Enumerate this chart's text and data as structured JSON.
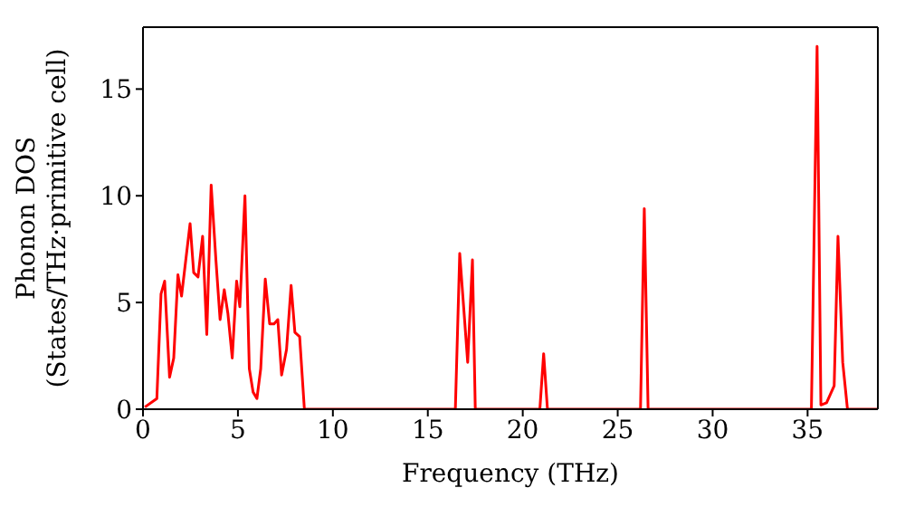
{
  "chart_data": {
    "type": "line",
    "xlabel": "Frequency (THz)",
    "ylabel": "Phonon DOS\n(States/THz·primitive cell)",
    "xlim": [
      0,
      38.7
    ],
    "ylim": [
      0,
      17.9
    ],
    "xticks": [
      0,
      5,
      10,
      15,
      20,
      25,
      30,
      35
    ],
    "yticks": [
      0,
      5,
      10,
      15
    ],
    "marker": "none",
    "line_style": "solid",
    "series": [
      {
        "color": "#ff0000",
        "x": [
          0.1,
          0.73,
          0.95,
          1.14,
          1.4,
          1.62,
          1.84,
          2.03,
          2.48,
          2.67,
          2.9,
          3.14,
          3.36,
          3.59,
          3.84,
          4.06,
          4.28,
          4.47,
          4.7,
          4.93,
          5.1,
          5.37,
          5.6,
          5.8,
          6.0,
          6.2,
          6.44,
          6.67,
          6.9,
          7.1,
          7.3,
          7.56,
          7.8,
          8.0,
          8.25,
          8.5,
          16.45,
          16.68,
          17.1,
          17.35,
          17.5,
          20.9,
          21.1,
          21.3,
          26.2,
          26.4,
          26.6,
          35.2,
          35.5,
          35.7,
          36.0,
          36.4,
          36.6,
          36.85,
          37.1,
          38.7
        ],
        "values": [
          0.1,
          0.5,
          5.4,
          6.0,
          1.5,
          2.4,
          6.3,
          5.3,
          8.7,
          6.4,
          6.2,
          8.1,
          3.5,
          10.5,
          7.0,
          4.2,
          5.6,
          4.5,
          2.4,
          6.0,
          4.8,
          10.0,
          1.9,
          0.8,
          0.5,
          1.9,
          6.1,
          4.0,
          4.0,
          4.2,
          1.6,
          2.8,
          5.8,
          3.6,
          3.4,
          0,
          0,
          7.3,
          2.2,
          7.0,
          0,
          0,
          2.6,
          0,
          0,
          9.4,
          0,
          0,
          17.0,
          0.2,
          0.3,
          1.1,
          8.1,
          2.2,
          0,
          0
        ]
      }
    ]
  }
}
